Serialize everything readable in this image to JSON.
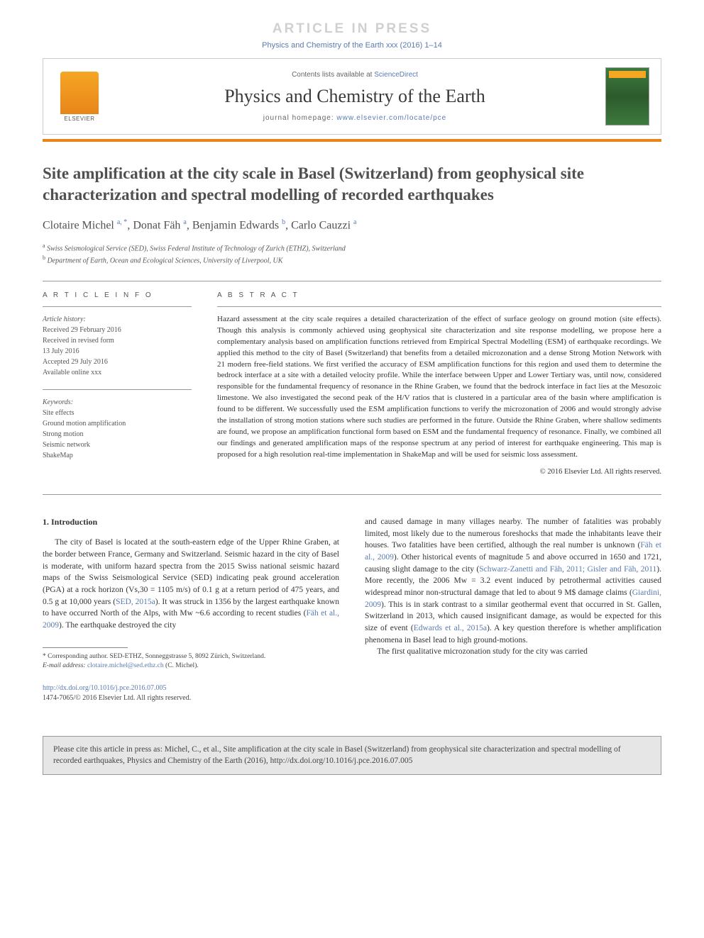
{
  "banner": "ARTICLE IN PRESS",
  "running_head": "Physics and Chemistry of the Earth xxx (2016) 1–14",
  "header": {
    "contents_pre": "Contents lists available at ",
    "contents_link": "ScienceDirect",
    "journal": "Physics and Chemistry of the Earth",
    "homepage_pre": "journal homepage: ",
    "homepage_url": "www.elsevier.com/locate/pce",
    "publisher_name": "ELSEVIER"
  },
  "title": "Site amplification at the city scale in Basel (Switzerland) from geophysical site characterization and spectral modelling of recorded earthquakes",
  "authors_html": "Clotaire Michel <sup>a, *</sup>, Donat Fäh <sup>a</sup>, Benjamin Edwards <sup>b</sup>, Carlo Cauzzi <sup>a</sup>",
  "affiliations": [
    "a Swiss Seismological Service (SED), Swiss Federal Institute of Technology of Zurich (ETHZ), Switzerland",
    "b Department of Earth, Ocean and Ecological Sciences, University of Liverpool, UK"
  ],
  "info": {
    "label_info": "A R T I C L E  I N F O",
    "label_abstract": "A B S T R A C T",
    "history_label": "Article history:",
    "history": [
      "Received 29 February 2016",
      "Received in revised form",
      "13 July 2016",
      "Accepted 29 July 2016",
      "Available online xxx"
    ],
    "keywords_label": "Keywords:",
    "keywords": [
      "Site effects",
      "Ground motion amplification",
      "Strong motion",
      "Seismic network",
      "ShakeMap"
    ]
  },
  "abstract": "Hazard assessment at the city scale requires a detailed characterization of the effect of surface geology on ground motion (site effects). Though this analysis is commonly achieved using geophysical site characterization and site response modelling, we propose here a complementary analysis based on amplification functions retrieved from Empirical Spectral Modelling (ESM) of earthquake recordings. We applied this method to the city of Basel (Switzerland) that benefits from a detailed microzonation and a dense Strong Motion Network with 21 modern free-field stations. We first verified the accuracy of ESM amplification functions for this region and used them to determine the bedrock interface at a site with a detailed velocity profile. While the interface between Upper and Lower Tertiary was, until now, considered responsible for the fundamental frequency of resonance in the Rhine Graben, we found that the bedrock interface in fact lies at the Mesozoic limestone. We also investigated the second peak of the H/V ratios that is clustered in a particular area of the basin where amplification is found to be different. We successfully used the ESM amplification functions to verify the microzonation of 2006 and would strongly advise the installation of strong motion stations where such studies are performed in the future. Outside the Rhine Graben, where shallow sediments are found, we propose an amplification functional form based on ESM and the fundamental frequency of resonance. Finally, we combined all our findings and generated amplification maps of the response spectrum at any period of interest for earthquake engineering. This map is proposed for a high resolution real-time implementation in ShakeMap and will be used for seismic loss assessment.",
  "copyright": "© 2016 Elsevier Ltd. All rights reserved.",
  "section1_heading": "1. Introduction",
  "col1_p1_pre": "The city of Basel is located at the south-eastern edge of the Upper Rhine Graben, at the border between France, Germany and Switzerland. Seismic hazard in the city of Basel is moderate, with uniform hazard spectra from the 2015 Swiss national seismic hazard maps of the Swiss Seismological Service (SED) indicating peak ground acceleration (PGA) at a rock horizon (Vs,30 = 1105 m/s) of 0.1 g at a return period of 475 years, and 0.5 g at 10,000 years (",
  "col1_ref1": "SED, 2015a",
  "col1_p1_mid": "). It was struck in 1356 by the largest earthquake known to have occurred North of the Alps, with Mw ~6.6 according to recent studies (",
  "col1_ref2": "Fäh et al., 2009",
  "col1_p1_end": "). The earthquake destroyed the city",
  "col2_p1_pre": "and caused damage in many villages nearby. The number of fatalities was probably limited, most likely due to the numerous foreshocks that made the inhabitants leave their houses. Two fatalities have been certified, although the real number is unknown (",
  "col2_ref1": "Fäh et al., 2009",
  "col2_p1_mid1": "). Other historical events of magnitude 5 and above occurred in 1650 and 1721, causing slight damage to the city (",
  "col2_ref2": "Schwarz-Zanetti and Fäh, 2011; Gisler and Fäh, 2011",
  "col2_p1_mid2": "). More recently, the 2006 Mw = 3.2 event induced by petrothermal activities caused widespread minor non-structural damage that led to about 9 M$ damage claims (",
  "col2_ref3": "Giardini, 2009",
  "col2_p1_mid3": "). This is in stark contrast to a similar geothermal event that occurred in St. Gallen, Switzerland in 2013, which caused insignificant damage, as would be expected for this size of event (",
  "col2_ref4": "Edwards et al., 2015a",
  "col2_p1_end": "). A key question therefore is whether amplification phenomena in Basel lead to high ground-motions.",
  "col2_p2": "The first qualitative microzonation study for the city was carried",
  "footnote": {
    "corr": "* Corresponding author. SED-ETHZ, Sonneggstrasse 5, 8092 Zürich, Switzerland.",
    "email_label": "E-mail address:",
    "email": "clotaire.michel@sed.ethz.ch",
    "email_suffix": " (C. Michel)."
  },
  "doi": {
    "url": "http://dx.doi.org/10.1016/j.pce.2016.07.005",
    "issn_line": "1474-7065/© 2016 Elsevier Ltd. All rights reserved."
  },
  "citebox": "Please cite this article in press as: Michel, C., et al., Site amplification at the city scale in Basel (Switzerland) from geophysical site characterization and spectral modelling of recorded earthquakes, Physics and Chemistry of the Earth (2016), http://dx.doi.org/10.1016/j.pce.2016.07.005",
  "colors": {
    "link": "#5a7bb0",
    "accent": "#e8851a",
    "banner_gray": "#d0d0d0",
    "rule": "#999999",
    "citebox_bg": "#e6e6e6"
  }
}
